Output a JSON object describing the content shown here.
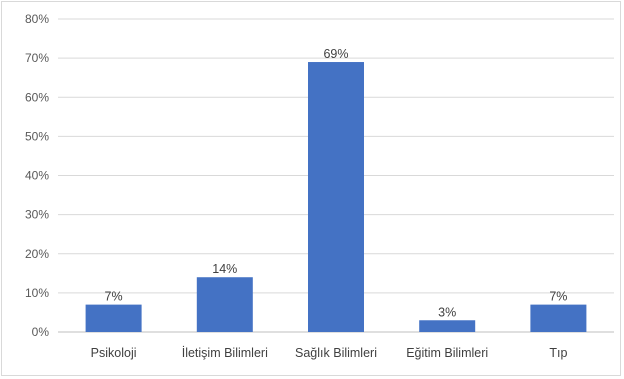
{
  "chart_data": {
    "type": "bar",
    "categories": [
      "Psikoloji",
      "İletişim Bilimleri",
      "Sağlık Bilimleri",
      "Eğitim Bilimleri",
      "Tıp"
    ],
    "values": [
      7,
      14,
      69,
      3,
      7
    ],
    "data_labels": [
      "7%",
      "14%",
      "69%",
      "3%",
      "7%"
    ],
    "y_ticks": [
      "0%",
      "10%",
      "20%",
      "30%",
      "40%",
      "50%",
      "60%",
      "70%",
      "80%"
    ],
    "ylim": [
      0,
      80
    ],
    "title": "",
    "xlabel": "",
    "ylabel": "",
    "grid": true,
    "legend": "none",
    "colors": {
      "bar": "#4472c4",
      "grid": "#d9d9d9",
      "axis": "#bfbfbf"
    }
  }
}
